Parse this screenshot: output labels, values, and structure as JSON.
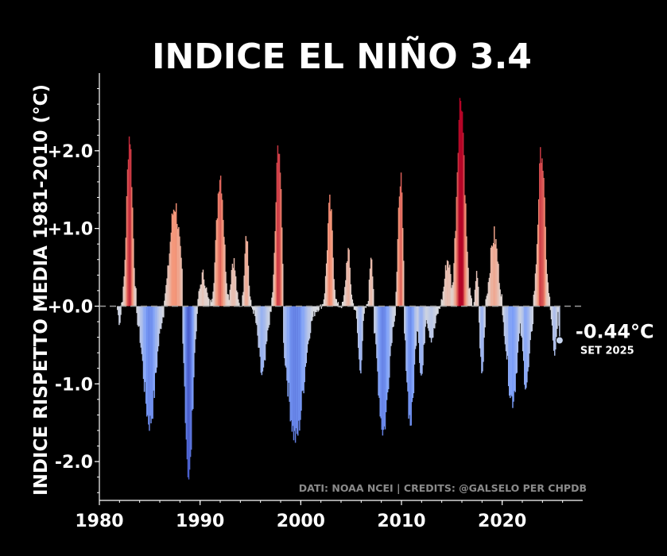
{
  "chart_data": {
    "type": "bar",
    "title": "INDICE EL NIÑO 3.4",
    "ylabel": "INDICE RISPETTO MEDIA 1981-2010 (°C)",
    "xlabel": "",
    "xlim": [
      1980,
      2028
    ],
    "ylim": [
      -2.5,
      3.0
    ],
    "x_ticks": [
      1980,
      1990,
      2000,
      2010,
      2020
    ],
    "y_ticks": [
      2.0,
      1.0,
      0.0,
      -1.0,
      -2.0
    ],
    "y_tick_labels": [
      "+2.0",
      "+1.0",
      "+0.0",
      "-1.0",
      "-2.0"
    ],
    "credits": "DATI: NOAA NCEI | CREDITS: @GALSELO PER CHPDB",
    "annotation": {
      "value_label": "-0.44°C",
      "date_label": "SET 2025",
      "x": 2025.7,
      "y": -0.44
    },
    "colormap": "coolwarm",
    "color_range": [
      -2.5,
      2.5
    ],
    "episodes": [
      {
        "peak_x": 1982.0,
        "peak_y": -0.2,
        "width": 0.4
      },
      {
        "peak_x": 1983.0,
        "peak_y": 2.2,
        "width": 0.95
      },
      {
        "peak_x": 1985.0,
        "peak_y": -1.5,
        "width": 2.0
      },
      {
        "peak_x": 1987.5,
        "peak_y": 1.3,
        "width": 1.6
      },
      {
        "peak_x": 1988.9,
        "peak_y": -2.2,
        "width": 1.2
      },
      {
        "peak_x": 1990.3,
        "peak_y": 0.4,
        "width": 1.0
      },
      {
        "peak_x": 1992.0,
        "peak_y": 1.7,
        "width": 1.2
      },
      {
        "peak_x": 1993.3,
        "peak_y": 0.6,
        "width": 0.8
      },
      {
        "peak_x": 1994.6,
        "peak_y": 1.0,
        "width": 0.6
      },
      {
        "peak_x": 1996.2,
        "peak_y": -0.9,
        "width": 1.3
      },
      {
        "peak_x": 1997.8,
        "peak_y": 2.1,
        "width": 0.9
      },
      {
        "peak_x": 1999.5,
        "peak_y": -1.7,
        "width": 2.6
      },
      {
        "peak_x": 2002.9,
        "peak_y": 1.3,
        "width": 0.9
      },
      {
        "peak_x": 2004.7,
        "peak_y": 0.7,
        "width": 0.7
      },
      {
        "peak_x": 2005.9,
        "peak_y": -0.8,
        "width": 0.7
      },
      {
        "peak_x": 2007.0,
        "peak_y": 0.7,
        "width": 0.5
      },
      {
        "peak_x": 2008.2,
        "peak_y": -1.6,
        "width": 1.7
      },
      {
        "peak_x": 2009.9,
        "peak_y": 1.7,
        "width": 0.7
      },
      {
        "peak_x": 2010.9,
        "peak_y": -1.5,
        "width": 1.2
      },
      {
        "peak_x": 2012.0,
        "peak_y": -0.9,
        "width": 0.8
      },
      {
        "peak_x": 2013.0,
        "peak_y": -0.4,
        "width": 1.2
      },
      {
        "peak_x": 2014.6,
        "peak_y": 0.6,
        "width": 1.0
      },
      {
        "peak_x": 2015.9,
        "peak_y": 2.7,
        "width": 1.3
      },
      {
        "peak_x": 2017.5,
        "peak_y": 0.4,
        "width": 0.5
      },
      {
        "peak_x": 2018.0,
        "peak_y": -0.9,
        "width": 0.6
      },
      {
        "peak_x": 2019.2,
        "peak_y": 0.9,
        "width": 1.3
      },
      {
        "peak_x": 2021.0,
        "peak_y": -1.2,
        "width": 1.6
      },
      {
        "peak_x": 2022.4,
        "peak_y": -1.0,
        "width": 1.2
      },
      {
        "peak_x": 2023.9,
        "peak_y": 2.0,
        "width": 1.1
      },
      {
        "peak_x": 2025.2,
        "peak_y": -0.7,
        "width": 0.6
      },
      {
        "peak_x": 2025.7,
        "peak_y": -0.44,
        "width": 0.3
      }
    ]
  }
}
